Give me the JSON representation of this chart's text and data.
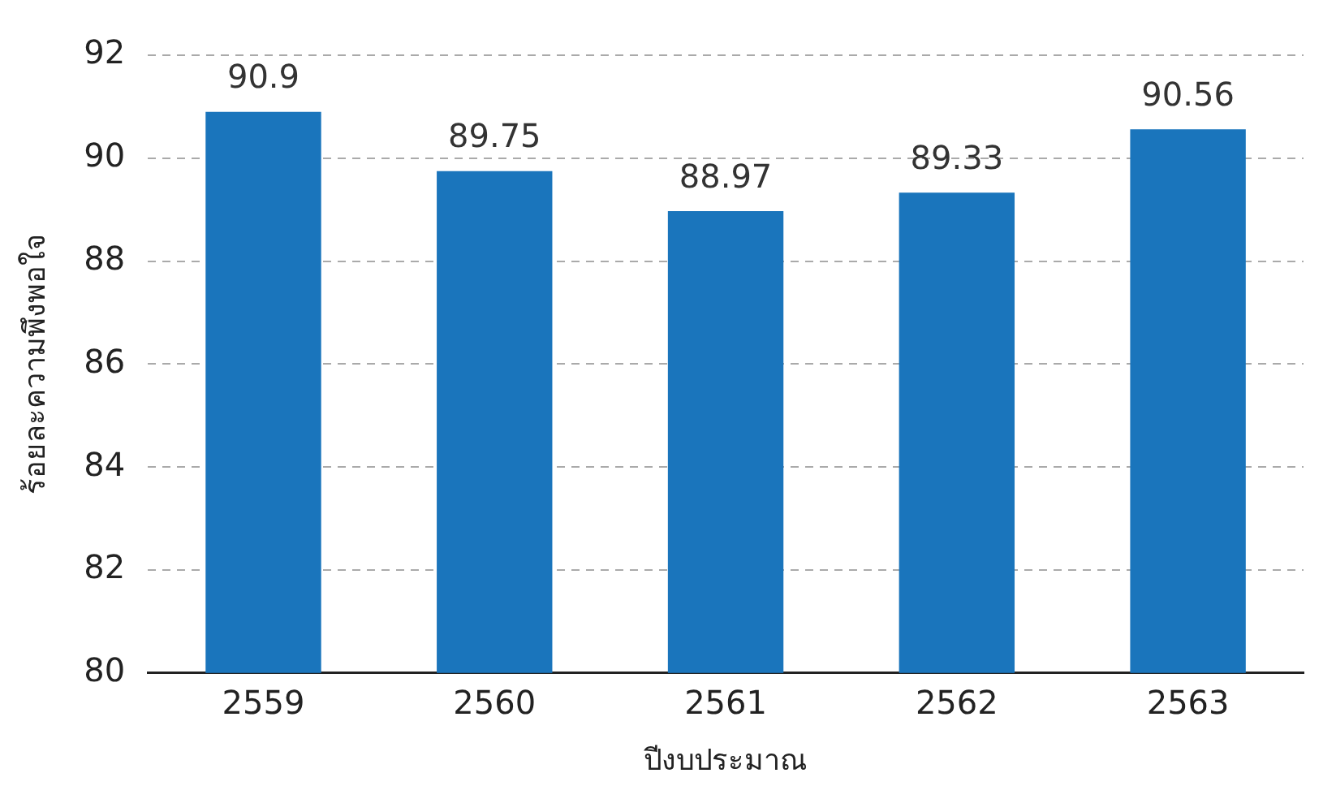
{
  "chart_data": {
    "type": "bar",
    "xlabel": "ปีงบประมาณ",
    "ylabel": "ร้อยละความพึงพอใจ",
    "categories": [
      "2559",
      "2560",
      "2561",
      "2562",
      "2563"
    ],
    "values": [
      90.9,
      89.75,
      88.97,
      89.33,
      90.56
    ],
    "color": "#1a75bc",
    "ylim": [
      80,
      92
    ],
    "yticks": [
      80,
      82,
      84,
      86,
      88,
      90,
      92
    ],
    "grid": "y",
    "data_labels": true,
    "legend": false
  }
}
